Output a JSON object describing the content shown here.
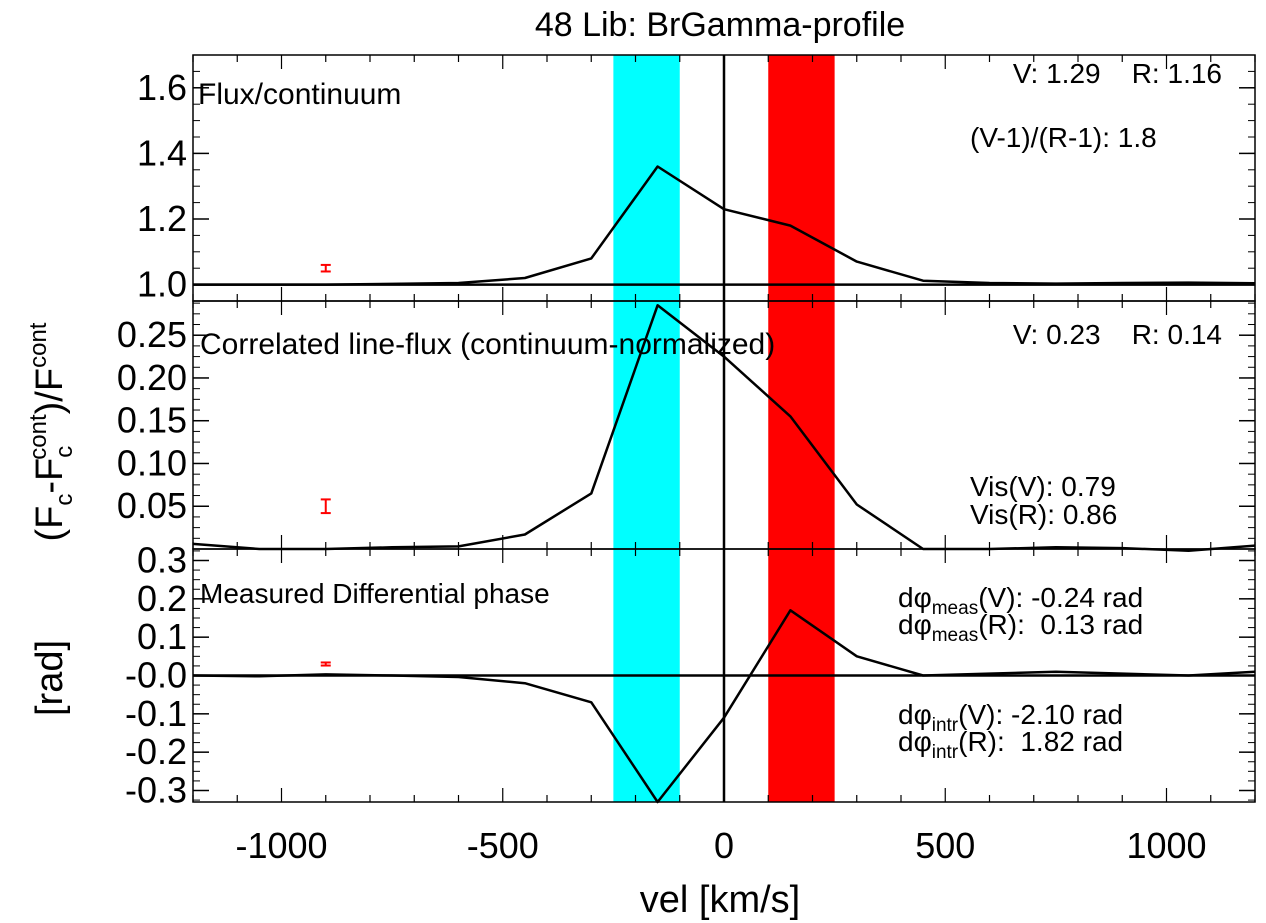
{
  "title": "48 Lib: BrGamma-profile",
  "xlabel": "vel [km/s]",
  "colors": {
    "blue_band": "#00ffff",
    "red_band": "#ff0000",
    "line": "#000000",
    "error_bar": "#ff0000"
  },
  "bands": {
    "blue": [
      -250,
      -100
    ],
    "red": [
      100,
      250
    ]
  },
  "xlim": [
    -1200,
    1200
  ],
  "x_ticks": [
    -1000,
    -500,
    0,
    500,
    1000
  ],
  "x_tick_labels": [
    "-1000",
    "-500",
    "0",
    "500",
    "1000"
  ],
  "ylabel_mid": {
    "main": "(F",
    "sub1": "c",
    "dash": "-F",
    "sub2": "c",
    "sup2": "cont",
    "tail": ")/F",
    "sup3": "cont"
  },
  "ylabel_bot": "[rad]",
  "top": {
    "panel_title": "Flux/continuum",
    "ylim": [
      0.95,
      1.7
    ],
    "y_ticks": [
      1.0,
      1.2,
      1.4,
      1.6
    ],
    "y_tick_labels": [
      "1.0",
      "1.2",
      "1.4",
      "1.6"
    ],
    "annot_vr": "V: 1.29    R: 1.16",
    "annot_ratio": "(V-1)/(R-1): 1.8",
    "error_bar": {
      "x": -900,
      "y": 1.05,
      "err": 0.01
    }
  },
  "mid": {
    "panel_title": "Correlated line-flux (continuum-normalized)",
    "ylim": [
      0.0,
      0.29
    ],
    "y_ticks": [
      0.05,
      0.1,
      0.15,
      0.2,
      0.25
    ],
    "y_tick_labels": [
      "0.05",
      "0.10",
      "0.15",
      "0.20",
      "0.25"
    ],
    "annot_vr": "V: 0.23    R: 0.14",
    "annot_visv": "Vis(V): 0.79",
    "annot_visr": "Vis(R): 0.86",
    "error_bar": {
      "x": -900,
      "y": 0.05,
      "err": 0.008
    }
  },
  "bot": {
    "panel_title": "Measured Differential phase",
    "ylim": [
      -0.33,
      0.33
    ],
    "y_ticks": [
      -0.3,
      -0.2,
      -0.1,
      0.0,
      0.1,
      0.2,
      0.3
    ],
    "y_tick_labels": [
      "-0.3",
      "-0.2",
      "-0.1",
      "-0.0",
      "0.1",
      "0.2",
      "0.3"
    ],
    "annot_meas_v": {
      "pre": "dφ",
      "sub": "meas",
      "post": "(V): -0.24 rad"
    },
    "annot_meas_r": {
      "pre": "dφ",
      "sub": "meas",
      "post": "(R):  0.13 rad"
    },
    "annot_intr_v": {
      "pre": "dφ",
      "sub": "intr",
      "post": "(V): -2.10 rad"
    },
    "annot_intr_r": {
      "pre": "dφ",
      "sub": "intr",
      "post": "(R):  1.82 rad"
    },
    "error_bar": {
      "x": -900,
      "y": 0.03,
      "err": 0.004
    }
  },
  "chart_data": [
    {
      "type": "line",
      "title": "Flux/continuum",
      "xlabel": "vel [km/s]",
      "xlim": [
        -1200,
        1200
      ],
      "ylim": [
        0.95,
        1.7
      ],
      "series": [
        {
          "x": [
            -1200,
            -1050,
            -900,
            -750,
            -600,
            -450,
            -300,
            -150,
            0,
            150,
            300,
            450,
            600,
            750,
            900,
            1050,
            1200
          ],
          "values": [
            1.0,
            1.0,
            1.0,
            1.002,
            1.005,
            1.02,
            1.08,
            1.36,
            1.23,
            1.18,
            1.07,
            1.012,
            1.005,
            1.003,
            1.005,
            1.006,
            1.004
          ]
        }
      ]
    },
    {
      "type": "line",
      "title": "Correlated line-flux (continuum-normalized)",
      "xlabel": "vel [km/s]",
      "xlim": [
        -1200,
        1200
      ],
      "ylim": [
        0.0,
        0.29
      ],
      "series": [
        {
          "x": [
            -1200,
            -1050,
            -900,
            -750,
            -600,
            -450,
            -300,
            -150,
            0,
            150,
            300,
            450,
            600,
            750,
            900,
            1050,
            1200
          ],
          "values": [
            0.006,
            0.0,
            0.0,
            0.002,
            0.003,
            0.017,
            0.065,
            0.285,
            0.225,
            0.155,
            0.052,
            0.0,
            0.0,
            0.002,
            0.001,
            -0.002,
            0.004
          ]
        }
      ]
    },
    {
      "type": "line",
      "title": "Measured Differential phase",
      "xlabel": "vel [km/s]",
      "ylabel": "[rad]",
      "xlim": [
        -1200,
        1200
      ],
      "ylim": [
        -0.33,
        0.33
      ],
      "series": [
        {
          "x": [
            -1200,
            -1050,
            -900,
            -750,
            -600,
            -450,
            -300,
            -150,
            0,
            150,
            300,
            450,
            600,
            750,
            900,
            1050,
            1200
          ],
          "values": [
            0.0,
            -0.002,
            0.003,
            0.0,
            -0.004,
            -0.02,
            -0.07,
            -0.33,
            -0.11,
            0.17,
            0.05,
            0.0,
            0.005,
            0.01,
            0.005,
            0.0,
            0.01
          ]
        }
      ]
    }
  ]
}
